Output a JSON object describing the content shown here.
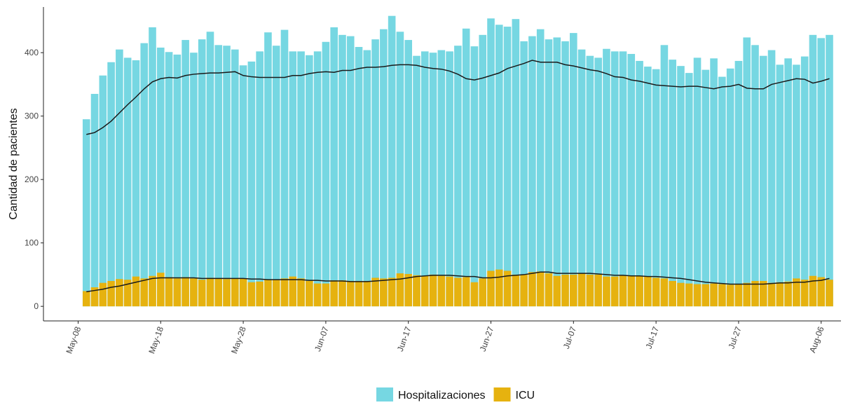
{
  "chart_data": {
    "type": "bar",
    "y_label": "Cantidad de pacientes",
    "x": [
      1,
      2,
      3,
      4,
      5,
      6,
      7,
      8,
      9,
      10,
      11,
      12,
      13,
      14,
      15,
      16,
      17,
      18,
      19,
      20,
      21,
      22,
      23,
      24,
      25,
      26,
      27,
      28,
      29,
      30,
      31,
      32,
      33,
      34,
      35,
      36,
      37,
      38,
      39,
      40,
      41,
      42,
      43,
      44,
      45,
      46,
      47,
      48,
      49,
      50,
      51,
      52,
      53,
      54,
      55,
      56,
      57,
      58,
      59,
      60,
      61,
      62,
      63,
      64,
      65,
      66,
      67,
      68,
      69,
      70,
      71,
      72,
      73,
      74,
      75,
      76,
      77,
      78,
      79,
      80,
      81,
      82,
      83,
      84,
      85,
      86,
      87,
      88,
      89,
      90,
      91
    ],
    "series": [
      {
        "name": "Hospitalizaciones",
        "color": "#76d7e2",
        "values": [
          295,
          335,
          364,
          385,
          405,
          392,
          388,
          415,
          440,
          408,
          401,
          397,
          420,
          400,
          421,
          433,
          412,
          411,
          405,
          380,
          386,
          402,
          432,
          411,
          436,
          402,
          402,
          396,
          402,
          417,
          440,
          428,
          426,
          409,
          404,
          421,
          437,
          458,
          433,
          420,
          395,
          402,
          400,
          404,
          402,
          411,
          438,
          410,
          428,
          454,
          444,
          441,
          453,
          418,
          426,
          437,
          421,
          424,
          418,
          431,
          405,
          395,
          392,
          406,
          402,
          402,
          398,
          387,
          378,
          374,
          412,
          389,
          379,
          368,
          392,
          373,
          391,
          362,
          375,
          387,
          424,
          412,
          395,
          404,
          381,
          391,
          381,
          394,
          428,
          423,
          428
        ]
      },
      {
        "name": "ICU",
        "color": "#e6b20f",
        "values": [
          24,
          30,
          37,
          40,
          43,
          42,
          47,
          44,
          48,
          53,
          46,
          44,
          46,
          44,
          42,
          45,
          44,
          43,
          44,
          44,
          38,
          39,
          42,
          42,
          44,
          47,
          44,
          40,
          36,
          36,
          41,
          41,
          40,
          40,
          40,
          45,
          44,
          45,
          52,
          51,
          49,
          48,
          50,
          48,
          47,
          45,
          46,
          38,
          44,
          56,
          58,
          56,
          50,
          50,
          54,
          55,
          52,
          48,
          50,
          50,
          52,
          50,
          50,
          47,
          47,
          49,
          48,
          48,
          47,
          45,
          44,
          40,
          37,
          36,
          35,
          35,
          36,
          35,
          34,
          35,
          37,
          40,
          40,
          37,
          38,
          39,
          44,
          42,
          48,
          46,
          42
        ]
      }
    ],
    "moving_averages": [
      {
        "color": "#1a1a1a",
        "values": [
          271,
          274,
          282,
          292,
          305,
          318,
          330,
          343,
          354,
          359,
          361,
          360,
          364,
          366,
          367,
          368,
          368,
          369,
          370,
          364,
          362,
          361,
          361,
          361,
          361,
          364,
          364,
          367,
          369,
          370,
          369,
          372,
          372,
          375,
          377,
          377,
          378,
          380,
          381,
          381,
          380,
          377,
          375,
          374,
          371,
          366,
          359,
          357,
          360,
          364,
          368,
          375,
          379,
          383,
          388,
          385,
          385,
          385,
          381,
          379,
          376,
          373,
          371,
          367,
          362,
          361,
          357,
          355,
          352,
          349,
          348,
          347,
          346,
          347,
          347,
          345,
          343,
          346,
          347,
          350,
          344,
          343,
          343,
          350,
          353,
          356,
          359,
          358,
          352,
          355,
          359
        ]
      },
      {
        "color": "#1a1a1a",
        "values": [
          23,
          25,
          27,
          30,
          32,
          35,
          38,
          41,
          44,
          45,
          45,
          45,
          45,
          45,
          44,
          44,
          44,
          44,
          44,
          44,
          43,
          43,
          42,
          42,
          42,
          42,
          42,
          41,
          41,
          40,
          40,
          40,
          39,
          39,
          39,
          40,
          41,
          42,
          43,
          45,
          47,
          48,
          49,
          49,
          49,
          48,
          47,
          47,
          45,
          45,
          46,
          48,
          49,
          50,
          52,
          54,
          54,
          52,
          52,
          52,
          52,
          52,
          51,
          50,
          49,
          49,
          48,
          48,
          47,
          47,
          46,
          45,
          44,
          42,
          40,
          38,
          37,
          36,
          35,
          35,
          35,
          35,
          35,
          36,
          37,
          37,
          38,
          38,
          40,
          41,
          44
        ]
      }
    ],
    "xlim": [
      -4.2,
      92.4
    ],
    "xticks": [
      {
        "value": 0,
        "label": "May-08"
      },
      {
        "value": 10,
        "label": "May-18"
      },
      {
        "value": 20,
        "label": "May-28"
      },
      {
        "value": 30,
        "label": "Jun-07"
      },
      {
        "value": 40,
        "label": "Jun-17"
      },
      {
        "value": 50,
        "label": "Jun-27"
      },
      {
        "value": 60,
        "label": "Jul-07"
      },
      {
        "value": 70,
        "label": "Jul-17"
      },
      {
        "value": 80,
        "label": "Jul-27"
      },
      {
        "value": 90,
        "label": "Aug-06"
      }
    ],
    "ylim": [
      -23,
      472
    ],
    "yticks": [
      0,
      100,
      200,
      300,
      400
    ],
    "legend": "bottom"
  }
}
